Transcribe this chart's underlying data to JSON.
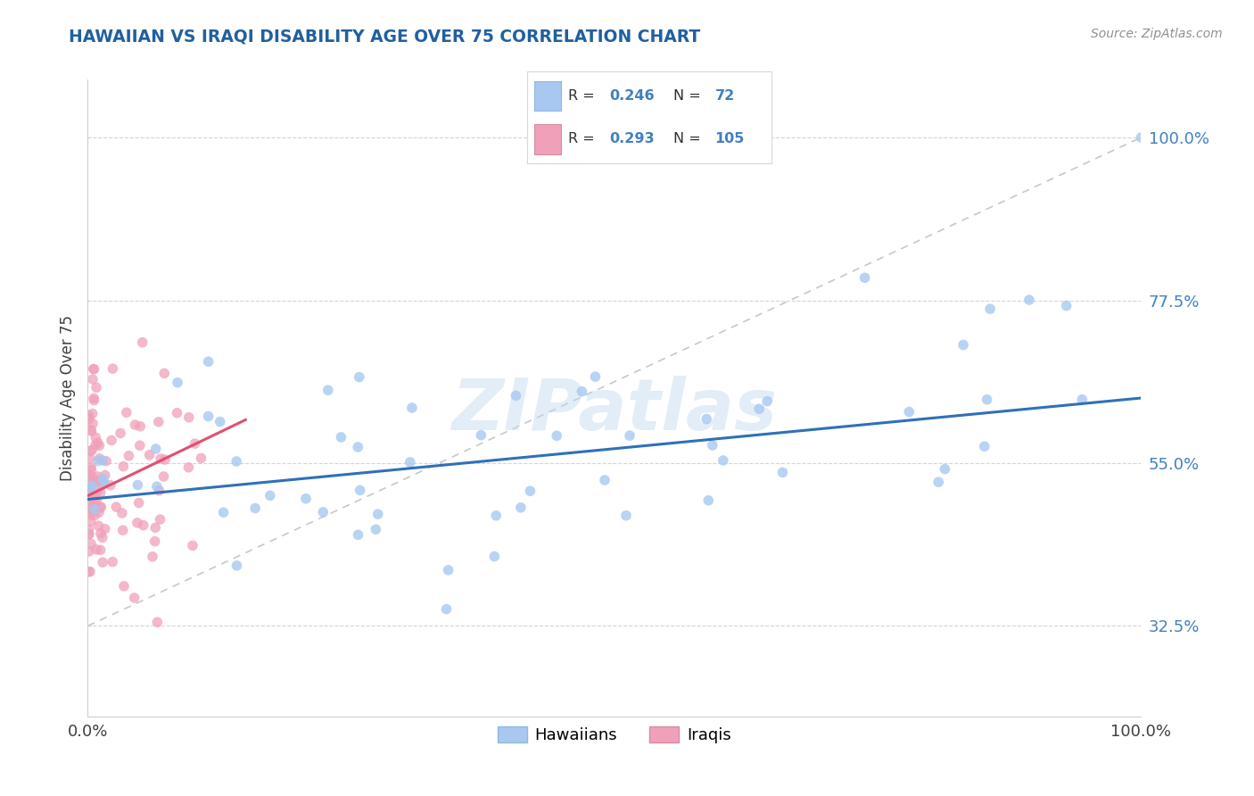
{
  "title": "HAWAIIAN VS IRAQI DISABILITY AGE OVER 75 CORRELATION CHART",
  "source_text": "Source: ZipAtlas.com",
  "ylabel": "Disability Age Over 75",
  "hawaiian_color": "#a8c8f0",
  "iraqi_color": "#f0a0b8",
  "hawaiian_line_color": "#3070b8",
  "iraqi_line_color": "#e05070",
  "ref_line_color": "#c8c8c8",
  "R_hawaiian": 0.246,
  "N_hawaiian": 72,
  "R_iraqi": 0.293,
  "N_iraqi": 105,
  "legend_label_hawaiian": "Hawaiians",
  "legend_label_iraqi": "Iraqis",
  "watermark": "ZIPatlas",
  "background_color": "#ffffff",
  "grid_color": "#d0d0d0",
  "title_color": "#2060a0",
  "axis_color": "#4080c0",
  "label_color": "#404040"
}
